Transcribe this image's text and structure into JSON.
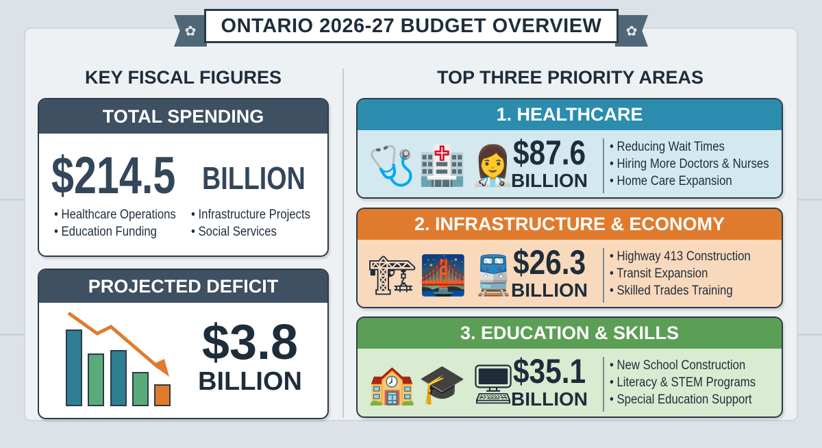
{
  "title": "ONTARIO 2026-27 BUDGET OVERVIEW",
  "emblem_icon": "trillium-icon",
  "left": {
    "heading": "KEY FISCAL FIGURES",
    "total": {
      "label": "TOTAL SPENDING",
      "amount": "$214.5",
      "unit": "BILLION",
      "items": [
        "Healthcare Operations",
        "Infrastructure Projects",
        "Education Funding",
        "Social Services"
      ]
    },
    "deficit": {
      "label": "PROJECTED DEFICIT",
      "amount": "$3.8",
      "unit": "BILLION",
      "icon": "declining-bar-chart-icon"
    }
  },
  "right": {
    "heading": "TOP THREE PRIORITY AREAS",
    "areas": [
      {
        "title": "1. HEALTHCARE",
        "amount": "$87.6",
        "unit": "BILLION",
        "color": "#2b8cad",
        "bg": "#d3e9ef",
        "items": [
          "Reducing Wait Times",
          "Hiring More Doctors & Nurses",
          "Home Care Expansion"
        ]
      },
      {
        "title": "2. INFRASTRUCTURE & ECONOMY",
        "amount": "$26.3",
        "unit": "BILLION",
        "color": "#e07b2e",
        "bg": "#f9d9bc",
        "items": [
          "Highway 413 Construction",
          "Transit Expansion",
          "Skilled Trades Training"
        ]
      },
      {
        "title": "3. EDUCATION & SKILLS",
        "amount": "$35.1",
        "unit": "BILLION",
        "color": "#5b9e55",
        "bg": "#d9ebd0",
        "items": [
          "New School Construction",
          "Literacy & STEM Programs",
          "Special Education Support"
        ]
      }
    ]
  }
}
